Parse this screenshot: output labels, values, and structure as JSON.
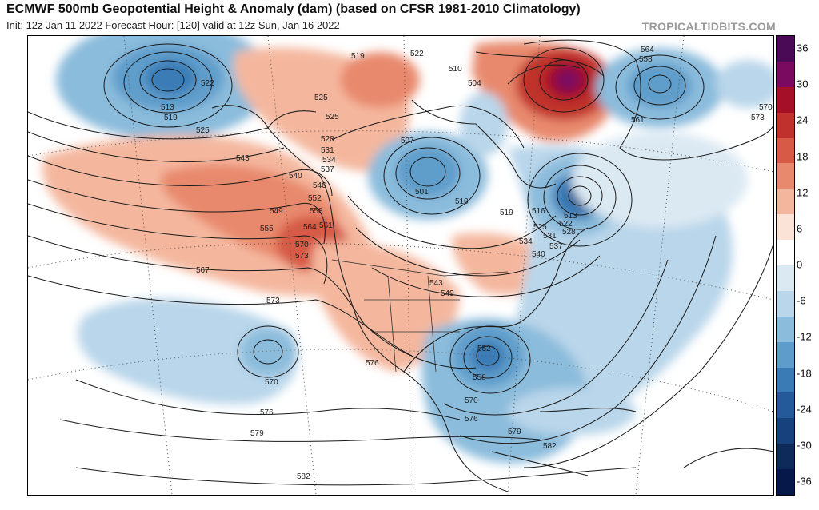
{
  "header": {
    "title": "ECMWF 500mb Geopotential Height & Anomaly (dam) (based on CFSR 1981-2010 Climatology)",
    "subtitle": "Init: 12z Jan 11 2022   Forecast Hour: [120]   valid at 12z Sun, Jan 16 2022",
    "credit": "TROPICALTIDBITS.COM"
  },
  "colorbar": {
    "ticks": [
      "36",
      "30",
      "24",
      "18",
      "12",
      "6",
      "0",
      "-6",
      "-12",
      "-18",
      "-24",
      "-30",
      "-36"
    ],
    "colors": [
      "#4b0a55",
      "#7a0a60",
      "#a50f28",
      "#c0302c",
      "#d65a45",
      "#e8896d",
      "#f4b79e",
      "#fbe3d7",
      "#ffffff",
      "#dbe9f3",
      "#b9d6ea",
      "#8bbcdc",
      "#5e9dcb",
      "#3a7bb6",
      "#245a9a",
      "#17417c",
      "#0d2a5a",
      "#06184a"
    ]
  },
  "map": {
    "contour_labels": [
      "513",
      "519",
      "522",
      "525",
      "519",
      "522",
      "510",
      "504",
      "564",
      "558",
      "561",
      "570",
      "573",
      "525",
      "525",
      "528",
      "531",
      "534",
      "537",
      "507",
      "543",
      "540",
      "546",
      "501",
      "510",
      "519",
      "516",
      "513",
      "522",
      "525",
      "528",
      "549",
      "552",
      "555",
      "558",
      "561",
      "564",
      "534",
      "537",
      "540",
      "531",
      "570",
      "573",
      "567",
      "543",
      "549",
      "573",
      "576",
      "552",
      "558",
      "570",
      "576",
      "579",
      "582",
      "570",
      "576",
      "579",
      "582"
    ],
    "anomaly_features": [
      {
        "name": "low-aleutian",
        "sign": "negative"
      },
      {
        "name": "ridge-west-coast",
        "sign": "positive"
      },
      {
        "name": "trough-great-lakes",
        "sign": "negative"
      },
      {
        "name": "trough-southeast-us",
        "sign": "negative"
      },
      {
        "name": "ridge-greenland",
        "sign": "positive"
      },
      {
        "name": "low-subtropical-pacific",
        "sign": "negative"
      },
      {
        "name": "low-north-atlantic",
        "sign": "negative"
      }
    ]
  }
}
